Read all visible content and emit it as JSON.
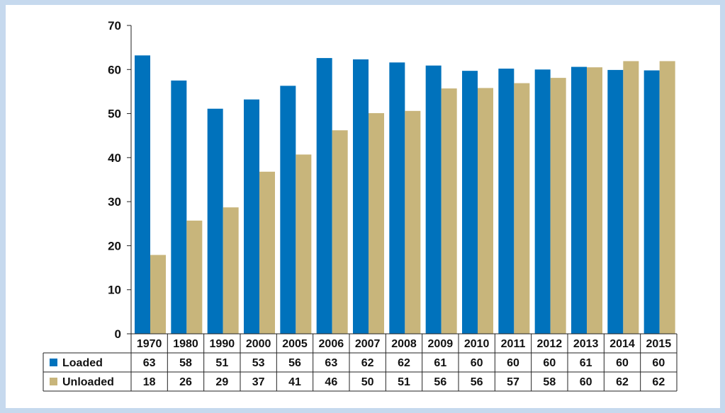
{
  "chart_data": {
    "type": "bar",
    "categories": [
      "1970",
      "1980",
      "1990",
      "2000",
      "2005",
      "2006",
      "2007",
      "2008",
      "2009",
      "2010",
      "2011",
      "2012",
      "2013",
      "2014",
      "2015"
    ],
    "series": [
      {
        "name": "Loaded",
        "color": "#0072bc",
        "values": [
          63.2,
          57.5,
          51.1,
          53.2,
          56.3,
          62.6,
          62.3,
          61.6,
          60.9,
          59.7,
          60.2,
          60.0,
          60.6,
          59.9,
          59.8
        ],
        "labels": [
          "63",
          "58",
          "51",
          "53",
          "56",
          "63",
          "62",
          "62",
          "61",
          "60",
          "60",
          "60",
          "61",
          "60",
          "60"
        ]
      },
      {
        "name": "Unloaded",
        "color": "#c8b57b",
        "values": [
          17.9,
          25.7,
          28.7,
          36.8,
          40.7,
          46.2,
          50.1,
          50.6,
          55.7,
          55.8,
          56.9,
          58.1,
          60.5,
          61.9,
          61.9
        ],
        "labels": [
          "18",
          "26",
          "29",
          "37",
          "41",
          "46",
          "50",
          "51",
          "56",
          "56",
          "57",
          "58",
          "60",
          "62",
          "62"
        ]
      }
    ],
    "ylim": [
      0,
      70
    ],
    "yticks": [
      "0",
      "10",
      "20",
      "30",
      "40",
      "50",
      "60",
      "70"
    ],
    "grid": false,
    "legend": "in data table"
  }
}
